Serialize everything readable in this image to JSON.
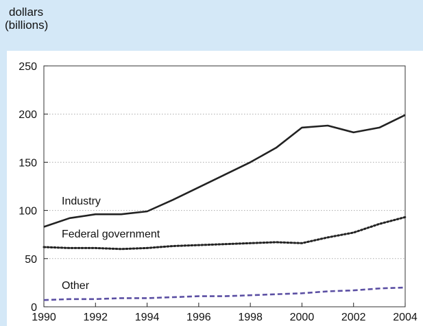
{
  "chart_data": {
    "type": "line",
    "ylabel_lines": [
      "dollars",
      "(billions)"
    ],
    "xlabel": "",
    "x": [
      1990,
      1991,
      1992,
      1993,
      1994,
      1995,
      1996,
      1997,
      1998,
      1999,
      2000,
      2001,
      2002,
      2003,
      2004
    ],
    "xlim": [
      1990,
      2004
    ],
    "ylim": [
      0,
      250
    ],
    "xticks": [
      "1990",
      "1992",
      "1994",
      "1996",
      "1998",
      "2000",
      "2002",
      "2004"
    ],
    "yticks": [
      "0",
      "50",
      "100",
      "150",
      "200",
      "250"
    ],
    "grid": "horizontal dotted",
    "legend": "inline labels",
    "series": [
      {
        "name": "Industry",
        "style": "solid",
        "color": "#222222",
        "values": [
          83,
          92,
          96,
          96,
          99,
          111,
          124,
          137,
          150,
          165,
          186,
          188,
          181,
          186,
          199
        ]
      },
      {
        "name": "Federal government",
        "style": "dotted",
        "color": "#222222",
        "values": [
          62,
          61,
          61,
          60,
          61,
          63,
          64,
          65,
          66,
          67,
          66,
          72,
          77,
          86,
          93
        ]
      },
      {
        "name": "Other",
        "style": "dashed",
        "color": "#5b4fa3",
        "values": [
          7,
          8,
          8,
          9,
          9,
          10,
          11,
          11,
          12,
          13,
          14,
          16,
          17,
          19,
          20
        ]
      }
    ]
  },
  "colors": {
    "background": "#d4e8f7",
    "plot_area": "#ffffff",
    "grid": "#aaaaaa",
    "text": "#111111"
  }
}
